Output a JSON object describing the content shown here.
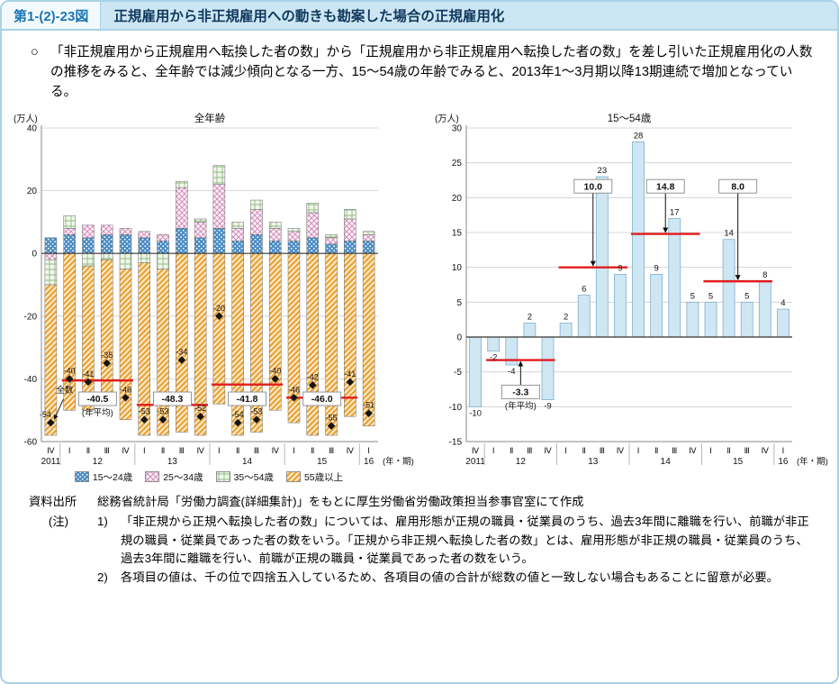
{
  "page": {
    "figure_label": "第1-(2)-23図",
    "title": "正規雇用から非正規雇用への動きも勘案した場合の正規雇用化",
    "intro_bullet": "○",
    "intro_text": "「非正規雇用から正規雇用へ転換した者の数」から「正規雇用から非正規雇用へ転換した者の数」を差し引いた正規雇用化の人数の推移をみると、全年齢では減少傾向となる一方、15〜54歳の年齢でみると、2013年1〜3月期以降13期連続で増加となっている。",
    "source_label": "資料出所",
    "source_text": "総務省統計局「労働力調査(詳細集計)」をもとに厚生労働省労働政策担当参事官室にて作成",
    "note_label": "(注)",
    "notes": [
      {
        "num": "1)",
        "text": "「非正規から正規へ転換した者の数」については、雇用形態が正規の職員・従業員のうち、過去3年間に離職を行い、前職が非正規の職員・従業員であった者の数をいう。「正規から非正規へ転換した者の数」とは、雇用形態が非正規の職員・従業員のうち、過去3年間に離職を行い、前職が正規の職員・従業員であった者の数をいう。"
      },
      {
        "num": "2)",
        "text": "各項目の値は、千の位で四捨五入しているため、各項目の値の合計が総数の値と一致しない場合もあることに留意が必要。"
      }
    ]
  },
  "colors": {
    "frame_border": "#a9d3e6",
    "header_label_bg": "#f2fafd",
    "header_title_bg": "#cde6f3",
    "average_line_red": "#e11c1c",
    "right_bar_fill": "#cfe6f3"
  },
  "chart_data": [
    {
      "type": "bar",
      "variant": "stacked",
      "title": "全年齢",
      "y_unit": "(万人)",
      "x_unit": "(年・期)",
      "ylim": [
        -60,
        40
      ],
      "ytick_step": 20,
      "grid": true,
      "x_groups": [
        {
          "year": "2011",
          "quarters": [
            "Ⅳ"
          ]
        },
        {
          "year": "12",
          "quarters": [
            "Ⅰ",
            "Ⅱ",
            "Ⅲ",
            "Ⅳ"
          ]
        },
        {
          "year": "13",
          "quarters": [
            "Ⅰ",
            "Ⅱ",
            "Ⅲ",
            "Ⅳ"
          ]
        },
        {
          "year": "14",
          "quarters": [
            "Ⅰ",
            "Ⅱ",
            "Ⅲ",
            "Ⅳ"
          ]
        },
        {
          "year": "15",
          "quarters": [
            "Ⅰ",
            "Ⅱ",
            "Ⅲ",
            "Ⅳ"
          ]
        },
        {
          "year": "16",
          "quarters": [
            "Ⅰ"
          ]
        }
      ],
      "stacked_series": [
        {
          "name": "15〜24歳",
          "pattern": "dots-blue",
          "estimated": true,
          "values": [
            5,
            6,
            5,
            6,
            6,
            5,
            4,
            8,
            5,
            8,
            4,
            6,
            4,
            4,
            5,
            3,
            4,
            4
          ]
        },
        {
          "name": "25〜34歳",
          "pattern": "cross-pink",
          "estimated": true,
          "values": [
            -2,
            2,
            4,
            3,
            2,
            2,
            2,
            13,
            5,
            14,
            4,
            8,
            4,
            3,
            8,
            2,
            7,
            2
          ]
        },
        {
          "name": "35〜54歳",
          "pattern": "hatch-green",
          "estimated": true,
          "values": [
            -8,
            4,
            -4,
            -2,
            -5,
            -3,
            -5,
            2,
            1,
            6,
            2,
            3,
            2,
            1,
            3,
            1,
            3,
            1
          ]
        },
        {
          "name": "55歳以上",
          "pattern": "stripe-orange",
          "estimated": true,
          "values": [
            -48,
            -50,
            -46,
            -43,
            -48,
            -55,
            -53,
            -57,
            -58,
            -48,
            -58,
            -57,
            -50,
            -54,
            -58,
            -58,
            -52,
            -55
          ]
        }
      ],
      "totals": {
        "label": "全数",
        "marker": "diamond",
        "values": [
          -54,
          -40,
          -41,
          -35,
          -46,
          -53,
          -53,
          -34,
          -52,
          -20,
          -54,
          -53,
          -40,
          -46,
          -42,
          -55,
          -41,
          -51
        ]
      },
      "year_averages": [
        {
          "label": "-40.5",
          "value": -40.5,
          "from": 1,
          "to": 4,
          "caption": true
        },
        {
          "label": "-48.3",
          "value": -48.3,
          "from": 5,
          "to": 8
        },
        {
          "label": "-41.8",
          "value": -41.8,
          "from": 9,
          "to": 12
        },
        {
          "label": "-46.0",
          "value": -46.0,
          "from": 13,
          "to": 16
        }
      ],
      "avg_caption": "(年平均)"
    },
    {
      "type": "bar",
      "title": "15〜54歳",
      "y_unit": "(万人)",
      "x_unit": "(年・期)",
      "ylim": [
        -15,
        30
      ],
      "ytick_step": 5,
      "grid": true,
      "x_groups": [
        {
          "year": "2011",
          "quarters": [
            "Ⅳ"
          ]
        },
        {
          "year": "12",
          "quarters": [
            "Ⅰ",
            "Ⅱ",
            "Ⅲ",
            "Ⅳ"
          ]
        },
        {
          "year": "13",
          "quarters": [
            "Ⅰ",
            "Ⅱ",
            "Ⅲ",
            "Ⅳ"
          ]
        },
        {
          "year": "14",
          "quarters": [
            "Ⅰ",
            "Ⅱ",
            "Ⅲ",
            "Ⅳ"
          ]
        },
        {
          "year": "15",
          "quarters": [
            "Ⅰ",
            "Ⅱ",
            "Ⅲ",
            "Ⅳ"
          ]
        },
        {
          "year": "16",
          "quarters": [
            "Ⅰ"
          ]
        }
      ],
      "values": [
        -10,
        -2,
        -4,
        2,
        -9,
        2,
        6,
        23,
        9,
        28,
        9,
        17,
        5,
        5,
        14,
        5,
        8,
        4
      ],
      "year_averages": [
        {
          "label": "-3.3",
          "value": -3.3,
          "from": 1,
          "to": 4,
          "box": "below",
          "caption": true
        },
        {
          "label": "10.0",
          "value": 10.0,
          "from": 5,
          "to": 8,
          "box": "above"
        },
        {
          "label": "14.8",
          "value": 14.8,
          "from": 9,
          "to": 12,
          "box": "above"
        },
        {
          "label": "8.0",
          "value": 8.0,
          "from": 13,
          "to": 16,
          "box": "above"
        }
      ],
      "avg_caption": "(年平均)"
    }
  ]
}
